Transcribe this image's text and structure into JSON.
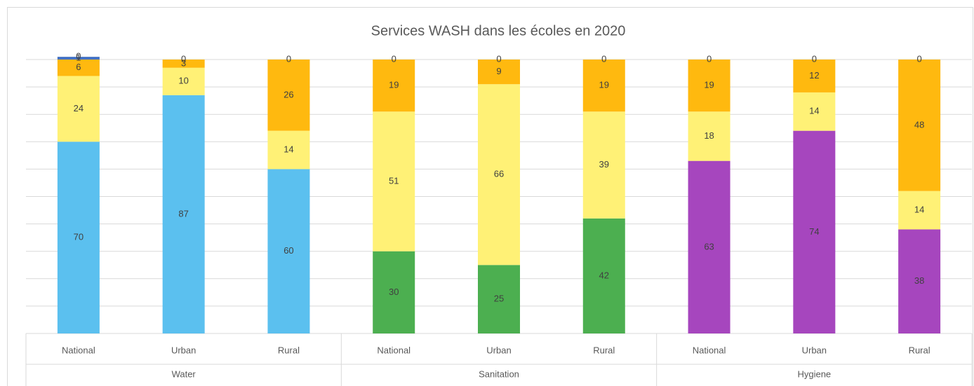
{
  "chart_data": {
    "type": "stacked_bar",
    "title": "Services WASH dans les écoles en 2020",
    "categories": [
      "National",
      "Urban",
      "Rural",
      "National",
      "Urban",
      "Rural",
      "National",
      "Urban",
      "Rural"
    ],
    "groups": [
      "Water",
      "Sanitation",
      "Hygiene"
    ],
    "series": [
      {
        "colors": [
          "#5bc0ef",
          "#5bc0ef",
          "#5bc0ef",
          "#4caf50",
          "#4caf50",
          "#4caf50",
          "#a646be",
          "#a646be",
          "#a646be"
        ],
        "values": [
          70,
          87,
          60,
          30,
          25,
          42,
          63,
          74,
          38
        ]
      },
      {
        "color": "#fff176",
        "values": [
          24,
          10,
          14,
          51,
          66,
          39,
          18,
          14,
          14
        ]
      },
      {
        "color": "#ffb90f",
        "values": [
          6,
          3,
          26,
          19,
          9,
          19,
          19,
          12,
          48
        ]
      },
      {
        "color": "#4472c4",
        "values": [
          1,
          null,
          null,
          null,
          null,
          null,
          null,
          null,
          null
        ]
      },
      {
        "color": "#7f7f7f",
        "values": [
          0,
          0,
          0,
          0,
          0,
          0,
          0,
          0,
          0
        ]
      }
    ],
    "ylim": [
      0,
      100
    ],
    "yticks": [
      0,
      10,
      20,
      30,
      40,
      50,
      60,
      70,
      80,
      90,
      100
    ],
    "grid": true
  }
}
